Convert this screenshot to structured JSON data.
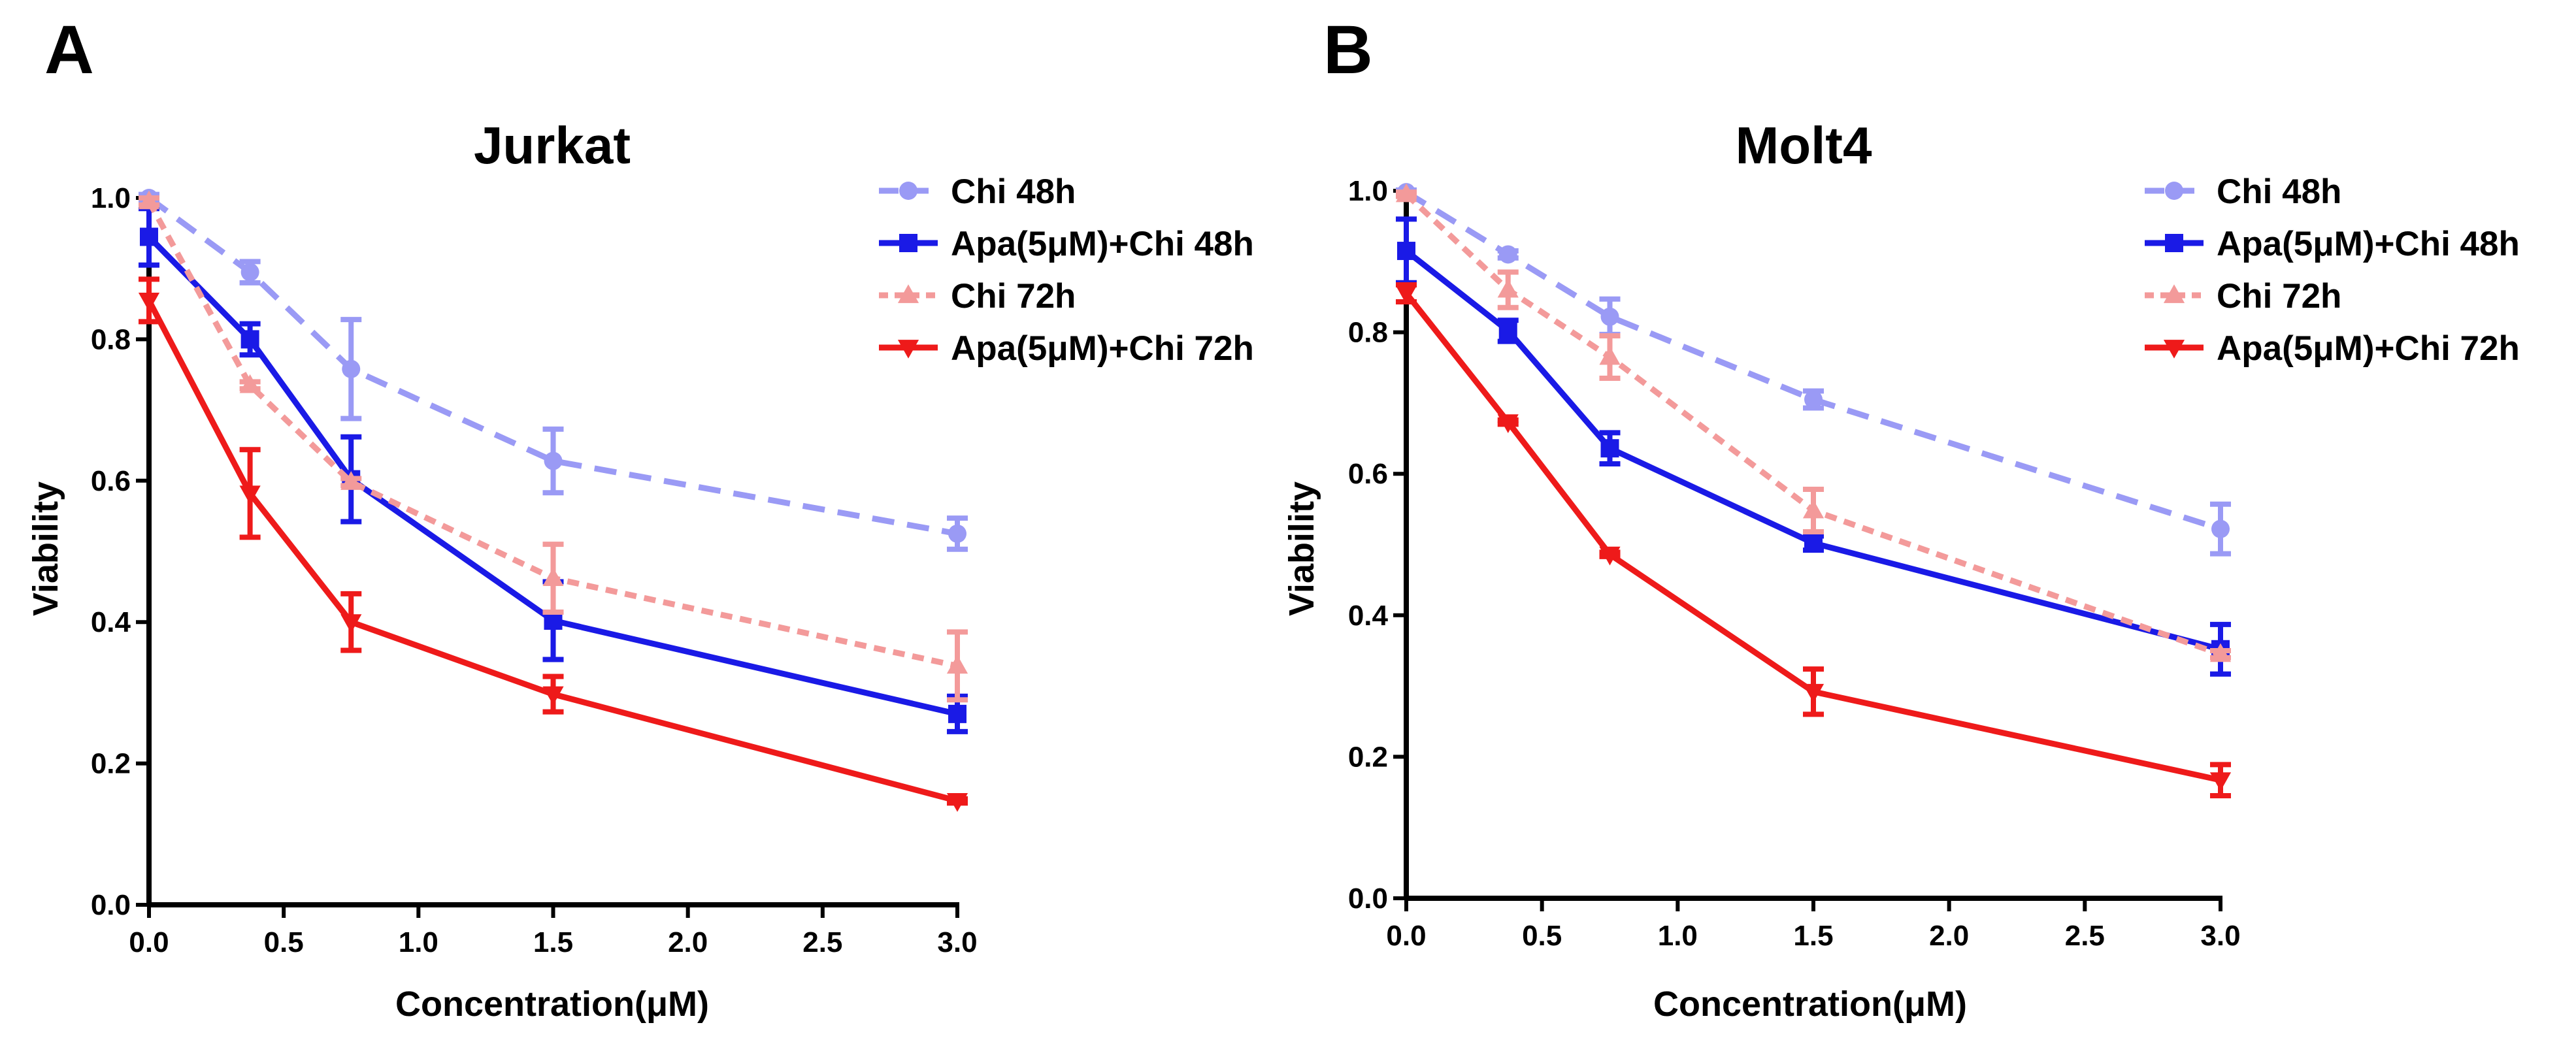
{
  "panels": [
    "A",
    "B"
  ],
  "series_styles": [
    {
      "name": "Chi 48h",
      "color": "#9a9af5",
      "dash": "34,20",
      "marker": "circle"
    },
    {
      "name": "Apa(5μM)+Chi 48h",
      "color": "#1a1ae6",
      "dash": "",
      "marker": "square"
    },
    {
      "name": "Chi 72h",
      "color": "#f39a9a",
      "dash": "18,12",
      "marker": "triangle-up"
    },
    {
      "name": "Apa(5μM)+Chi 72h",
      "color": "#ee1a1a",
      "dash": "",
      "marker": "triangle-down"
    }
  ],
  "chart_data": [
    {
      "type": "line",
      "title": "Jurkat",
      "xlabel": "Concentration(μM)",
      "ylabel": "Viability",
      "xlim": [
        0,
        3
      ],
      "ylim": [
        0,
        1
      ],
      "xticks": [
        0,
        0.5,
        1,
        1.5,
        2,
        2.5,
        3
      ],
      "xtick_labels": [
        "0.0",
        "0.5",
        "1.0",
        "1.5",
        "2.0",
        "2.5",
        "3.0"
      ],
      "yticks": [
        0,
        0.2,
        0.4,
        0.6,
        0.8,
        1
      ],
      "ytick_labels": [
        "0.0",
        "0.2",
        "0.4",
        "0.6",
        "0.8",
        "1.0"
      ],
      "legend_position": "top-right",
      "x": [
        0,
        0.375,
        0.75,
        1.5,
        3
      ],
      "series": [
        {
          "name": "Chi 48h",
          "values": [
            1.0,
            0.895,
            0.758,
            0.628,
            0.525
          ],
          "errors": [
            0.005,
            0.015,
            0.07,
            0.045,
            0.022
          ]
        },
        {
          "name": "Apa(5μM)+Chi 48h",
          "values": [
            0.945,
            0.8,
            0.602,
            0.402,
            0.27
          ],
          "errors": [
            0.04,
            0.022,
            0.06,
            0.055,
            0.025
          ]
        },
        {
          "name": "Chi 72h",
          "values": [
            0.995,
            0.735,
            0.598,
            0.462,
            0.338
          ],
          "errors": [
            0.005,
            0.005,
            0.005,
            0.048,
            0.048
          ]
        },
        {
          "name": "Apa(5μM)+Chi 72h",
          "values": [
            0.855,
            0.582,
            0.4,
            0.298,
            0.147
          ],
          "errors": [
            0.03,
            0.062,
            0.04,
            0.025,
            0.003
          ]
        }
      ]
    },
    {
      "type": "line",
      "title": "Molt4",
      "xlabel": "Concentration(μM)",
      "ylabel": "Viability",
      "xlim": [
        0,
        3
      ],
      "ylim": [
        0,
        1
      ],
      "xticks": [
        0,
        0.5,
        1,
        1.5,
        2,
        2.5,
        3
      ],
      "xtick_labels": [
        "0.0",
        "0.5",
        "1.0",
        "1.5",
        "2.0",
        "2.5",
        "3.0"
      ],
      "yticks": [
        0,
        0.2,
        0.4,
        0.6,
        0.8,
        1
      ],
      "ytick_labels": [
        "0.0",
        "0.2",
        "0.4",
        "0.6",
        "0.8",
        "1.0"
      ],
      "legend_position": "top-right",
      "x": [
        0,
        0.375,
        0.75,
        1.5,
        3
      ],
      "series": [
        {
          "name": "Chi 48h",
          "values": [
            0.998,
            0.91,
            0.822,
            0.705,
            0.522
          ],
          "errors": [
            0.003,
            0.005,
            0.025,
            0.012,
            0.035
          ]
        },
        {
          "name": "Apa(5μM)+Chi 48h",
          "values": [
            0.915,
            0.802,
            0.636,
            0.502,
            0.352
          ],
          "errors": [
            0.045,
            0.015,
            0.022,
            0.01,
            0.035
          ]
        },
        {
          "name": "Chi 72h",
          "values": [
            0.995,
            0.86,
            0.765,
            0.548,
            0.345
          ],
          "errors": [
            0.003,
            0.025,
            0.03,
            0.03,
            0.005
          ]
        },
        {
          "name": "Apa(5μM)+Chi 72h",
          "values": [
            0.855,
            0.673,
            0.486,
            0.292,
            0.167
          ],
          "errors": [
            0.012,
            0.003,
            0.003,
            0.032,
            0.022
          ]
        }
      ]
    }
  ]
}
